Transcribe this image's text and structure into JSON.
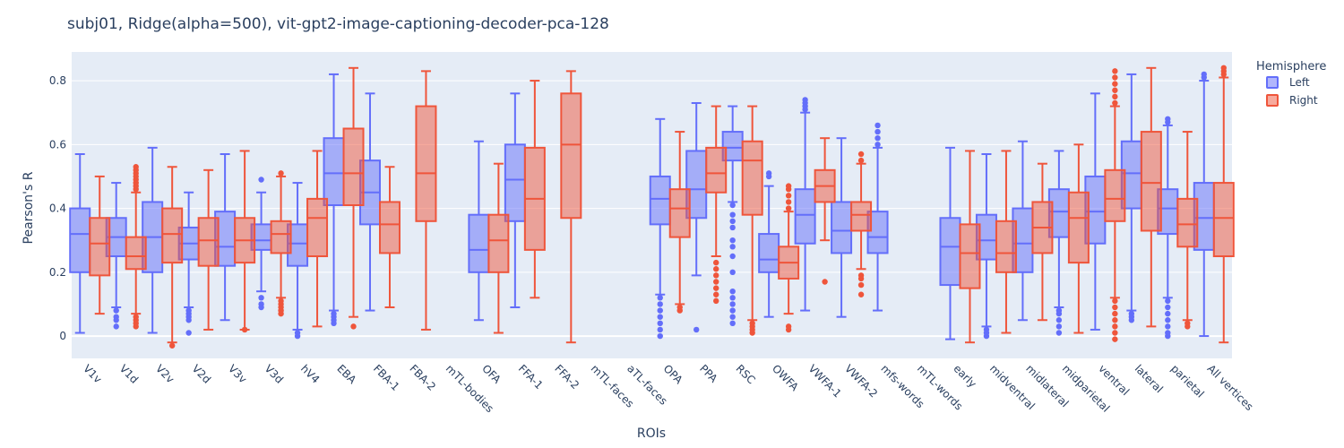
{
  "chart_data": {
    "type": "box",
    "title": "subj01, Ridge(alpha=500), vit-gpt2-image-captioning-decoder-pca-128",
    "xlabel": "ROIs",
    "ylabel": "Pearson's R",
    "ylim": [
      -0.07,
      0.89
    ],
    "yticks": [
      0,
      0.2,
      0.4,
      0.6,
      0.8
    ],
    "ytick_labels": [
      "0",
      "0.2",
      "0.4",
      "0.6",
      "0.8"
    ],
    "legend_title": "Hemisphere",
    "legend_position": "top-right",
    "grid": true,
    "categories": [
      "V1v",
      "V1d",
      "V2v",
      "V2d",
      "V3v",
      "V3d",
      "hV4",
      "EBA",
      "FBA-1",
      "FBA-2",
      "mTL-bodies",
      "OFA",
      "FFA-1",
      "FFA-2",
      "mTL-faces",
      "aTL-faces",
      "OPA",
      "PPA",
      "RSC",
      "OWFA",
      "VWFA-1",
      "VWFA-2",
      "mfs-words",
      "mTL-words",
      "early",
      "midventral",
      "midlateral",
      "midparietal",
      "ventral",
      "lateral",
      "parietal",
      "All vertices"
    ],
    "series": [
      {
        "name": "Left",
        "color": "#636efa",
        "fill": "rgba(99,110,250,0.5)",
        "boxes": [
          {
            "min": 0.01,
            "q1": 0.2,
            "median": 0.32,
            "q3": 0.4,
            "max": 0.57,
            "outliers": []
          },
          {
            "min": 0.09,
            "q1": 0.25,
            "median": 0.31,
            "q3": 0.37,
            "max": 0.48,
            "outliers": [
              0.03,
              0.05,
              0.06,
              0.08
            ]
          },
          {
            "min": 0.01,
            "q1": 0.2,
            "median": 0.31,
            "q3": 0.42,
            "max": 0.59,
            "outliers": []
          },
          {
            "min": 0.09,
            "q1": 0.24,
            "median": 0.29,
            "q3": 0.34,
            "max": 0.45,
            "outliers": [
              0.01,
              0.05,
              0.06,
              0.07,
              0.08
            ]
          },
          {
            "min": 0.05,
            "q1": 0.22,
            "median": 0.28,
            "q3": 0.39,
            "max": 0.57,
            "outliers": []
          },
          {
            "min": 0.14,
            "q1": 0.27,
            "median": 0.3,
            "q3": 0.35,
            "max": 0.45,
            "outliers": [
              0.09,
              0.1,
              0.12,
              0.49
            ]
          },
          {
            "min": 0.02,
            "q1": 0.22,
            "median": 0.29,
            "q3": 0.35,
            "max": 0.48,
            "outliers": [
              0.0,
              0.01
            ]
          },
          {
            "min": 0.08,
            "q1": 0.41,
            "median": 0.51,
            "q3": 0.62,
            "max": 0.82,
            "outliers": [
              0.04,
              0.05,
              0.06,
              0.07
            ]
          },
          {
            "min": 0.08,
            "q1": 0.35,
            "median": 0.45,
            "q3": 0.55,
            "max": 0.76,
            "outliers": []
          },
          null,
          null,
          {
            "min": 0.05,
            "q1": 0.2,
            "median": 0.27,
            "q3": 0.38,
            "max": 0.61,
            "outliers": []
          },
          {
            "min": 0.09,
            "q1": 0.36,
            "median": 0.49,
            "q3": 0.6,
            "max": 0.76,
            "outliers": []
          },
          null,
          null,
          null,
          {
            "min": 0.13,
            "q1": 0.35,
            "median": 0.43,
            "q3": 0.5,
            "max": 0.68,
            "outliers": [
              0.0,
              0.02,
              0.04,
              0.06,
              0.08,
              0.1,
              0.12
            ]
          },
          {
            "min": 0.19,
            "q1": 0.37,
            "median": 0.46,
            "q3": 0.58,
            "max": 0.73,
            "outliers": [
              0.02
            ]
          },
          {
            "min": 0.42,
            "q1": 0.55,
            "median": 0.59,
            "q3": 0.64,
            "max": 0.72,
            "outliers": [
              0.04,
              0.06,
              0.08,
              0.1,
              0.12,
              0.14,
              0.2,
              0.25,
              0.28,
              0.3,
              0.34,
              0.36,
              0.38,
              0.41
            ]
          },
          {
            "min": 0.06,
            "q1": 0.2,
            "median": 0.24,
            "q3": 0.32,
            "max": 0.47,
            "outliers": [
              0.5,
              0.51
            ]
          },
          {
            "min": 0.08,
            "q1": 0.29,
            "median": 0.38,
            "q3": 0.46,
            "max": 0.7,
            "outliers": [
              0.71,
              0.72,
              0.73,
              0.74
            ]
          },
          {
            "min": 0.06,
            "q1": 0.26,
            "median": 0.33,
            "q3": 0.42,
            "max": 0.62,
            "outliers": []
          },
          {
            "min": 0.08,
            "q1": 0.26,
            "median": 0.31,
            "q3": 0.39,
            "max": 0.59,
            "outliers": [
              0.6,
              0.62,
              0.64,
              0.66
            ]
          },
          null,
          {
            "min": -0.01,
            "q1": 0.16,
            "median": 0.28,
            "q3": 0.37,
            "max": 0.59,
            "outliers": []
          },
          {
            "min": 0.03,
            "q1": 0.24,
            "median": 0.3,
            "q3": 0.38,
            "max": 0.57,
            "outliers": [
              0.0,
              0.01,
              0.02
            ]
          },
          {
            "min": 0.05,
            "q1": 0.2,
            "median": 0.29,
            "q3": 0.4,
            "max": 0.61,
            "outliers": []
          },
          {
            "min": 0.09,
            "q1": 0.31,
            "median": 0.39,
            "q3": 0.46,
            "max": 0.58,
            "outliers": [
              0.01,
              0.03,
              0.05,
              0.07,
              0.08
            ]
          },
          {
            "min": 0.02,
            "q1": 0.29,
            "median": 0.39,
            "q3": 0.5,
            "max": 0.76,
            "outliers": []
          },
          {
            "min": 0.08,
            "q1": 0.4,
            "median": 0.51,
            "q3": 0.61,
            "max": 0.82,
            "outliers": [
              0.05,
              0.06,
              0.07
            ]
          },
          {
            "min": 0.12,
            "q1": 0.32,
            "median": 0.4,
            "q3": 0.46,
            "max": 0.66,
            "outliers": [
              0.0,
              0.01,
              0.03,
              0.05,
              0.07,
              0.09,
              0.11,
              0.67,
              0.68
            ]
          },
          {
            "min": 0.0,
            "q1": 0.27,
            "median": 0.37,
            "q3": 0.48,
            "max": 0.8,
            "outliers": [
              0.81,
              0.82
            ]
          }
        ]
      },
      {
        "name": "Right",
        "color": "#ef553b",
        "fill": "rgba(239,85,59,0.5)",
        "boxes": [
          {
            "min": 0.07,
            "q1": 0.19,
            "median": 0.29,
            "q3": 0.37,
            "max": 0.5,
            "outliers": []
          },
          {
            "min": 0.07,
            "q1": 0.21,
            "median": 0.25,
            "q3": 0.31,
            "max": 0.45,
            "outliers": [
              0.03,
              0.04,
              0.05,
              0.06,
              0.46,
              0.47,
              0.48,
              0.49,
              0.5,
              0.51,
              0.52,
              0.53
            ]
          },
          {
            "min": -0.02,
            "q1": 0.23,
            "median": 0.32,
            "q3": 0.4,
            "max": 0.53,
            "outliers": [
              -0.03
            ]
          },
          {
            "min": 0.02,
            "q1": 0.22,
            "median": 0.3,
            "q3": 0.37,
            "max": 0.52,
            "outliers": []
          },
          {
            "min": 0.02,
            "q1": 0.23,
            "median": 0.3,
            "q3": 0.37,
            "max": 0.58,
            "outliers": [
              0.02
            ]
          },
          {
            "min": 0.12,
            "q1": 0.26,
            "median": 0.32,
            "q3": 0.36,
            "max": 0.5,
            "outliers": [
              0.07,
              0.08,
              0.09,
              0.1,
              0.11,
              0.51
            ]
          },
          {
            "min": 0.03,
            "q1": 0.25,
            "median": 0.37,
            "q3": 0.43,
            "max": 0.58,
            "outliers": []
          },
          {
            "min": 0.06,
            "q1": 0.41,
            "median": 0.51,
            "q3": 0.65,
            "max": 0.84,
            "outliers": [
              0.03
            ]
          },
          {
            "min": 0.09,
            "q1": 0.26,
            "median": 0.35,
            "q3": 0.42,
            "max": 0.53,
            "outliers": []
          },
          {
            "min": 0.02,
            "q1": 0.36,
            "median": 0.51,
            "q3": 0.72,
            "max": 0.83,
            "outliers": []
          },
          null,
          {
            "min": 0.01,
            "q1": 0.2,
            "median": 0.3,
            "q3": 0.38,
            "max": 0.54,
            "outliers": []
          },
          {
            "min": 0.12,
            "q1": 0.27,
            "median": 0.43,
            "q3": 0.59,
            "max": 0.8,
            "outliers": []
          },
          {
            "min": -0.02,
            "q1": 0.37,
            "median": 0.6,
            "q3": 0.76,
            "max": 0.83,
            "outliers": []
          },
          null,
          null,
          {
            "min": 0.1,
            "q1": 0.31,
            "median": 0.4,
            "q3": 0.46,
            "max": 0.64,
            "outliers": [
              0.08,
              0.09
            ]
          },
          {
            "min": 0.25,
            "q1": 0.45,
            "median": 0.51,
            "q3": 0.59,
            "max": 0.72,
            "outliers": [
              0.11,
              0.13,
              0.15,
              0.17,
              0.19,
              0.21,
              0.23
            ]
          },
          {
            "min": 0.05,
            "q1": 0.38,
            "median": 0.55,
            "q3": 0.61,
            "max": 0.72,
            "outliers": [
              0.01,
              0.02,
              0.03,
              0.04
            ]
          },
          {
            "min": 0.07,
            "q1": 0.18,
            "median": 0.23,
            "q3": 0.28,
            "max": 0.39,
            "outliers": [
              0.02,
              0.03,
              0.4,
              0.42,
              0.44,
              0.46,
              0.47
            ]
          },
          {
            "min": 0.3,
            "q1": 0.42,
            "median": 0.47,
            "q3": 0.52,
            "max": 0.62,
            "outliers": [
              0.17
            ]
          },
          {
            "min": 0.21,
            "q1": 0.33,
            "median": 0.38,
            "q3": 0.42,
            "max": 0.54,
            "outliers": [
              0.13,
              0.16,
              0.18,
              0.19,
              0.55,
              0.57
            ]
          },
          null,
          null,
          {
            "min": -0.02,
            "q1": 0.15,
            "median": 0.26,
            "q3": 0.35,
            "max": 0.58,
            "outliers": []
          },
          {
            "min": 0.01,
            "q1": 0.2,
            "median": 0.26,
            "q3": 0.36,
            "max": 0.58,
            "outliers": []
          },
          {
            "min": 0.05,
            "q1": 0.26,
            "median": 0.34,
            "q3": 0.42,
            "max": 0.54,
            "outliers": []
          },
          {
            "min": 0.01,
            "q1": 0.23,
            "median": 0.37,
            "q3": 0.45,
            "max": 0.6,
            "outliers": []
          },
          {
            "min": 0.12,
            "q1": 0.36,
            "median": 0.43,
            "q3": 0.52,
            "max": 0.72,
            "outliers": [
              -0.01,
              0.01,
              0.03,
              0.05,
              0.07,
              0.09,
              0.11,
              0.73,
              0.75,
              0.77,
              0.79,
              0.81,
              0.83
            ]
          },
          {
            "min": 0.03,
            "q1": 0.33,
            "median": 0.48,
            "q3": 0.64,
            "max": 0.84,
            "outliers": []
          },
          {
            "min": 0.05,
            "q1": 0.28,
            "median": 0.35,
            "q3": 0.43,
            "max": 0.64,
            "outliers": [
              0.03,
              0.04
            ]
          },
          {
            "min": -0.02,
            "q1": 0.25,
            "median": 0.37,
            "q3": 0.48,
            "max": 0.81,
            "outliers": [
              0.82,
              0.83,
              0.84
            ]
          }
        ]
      }
    ]
  }
}
